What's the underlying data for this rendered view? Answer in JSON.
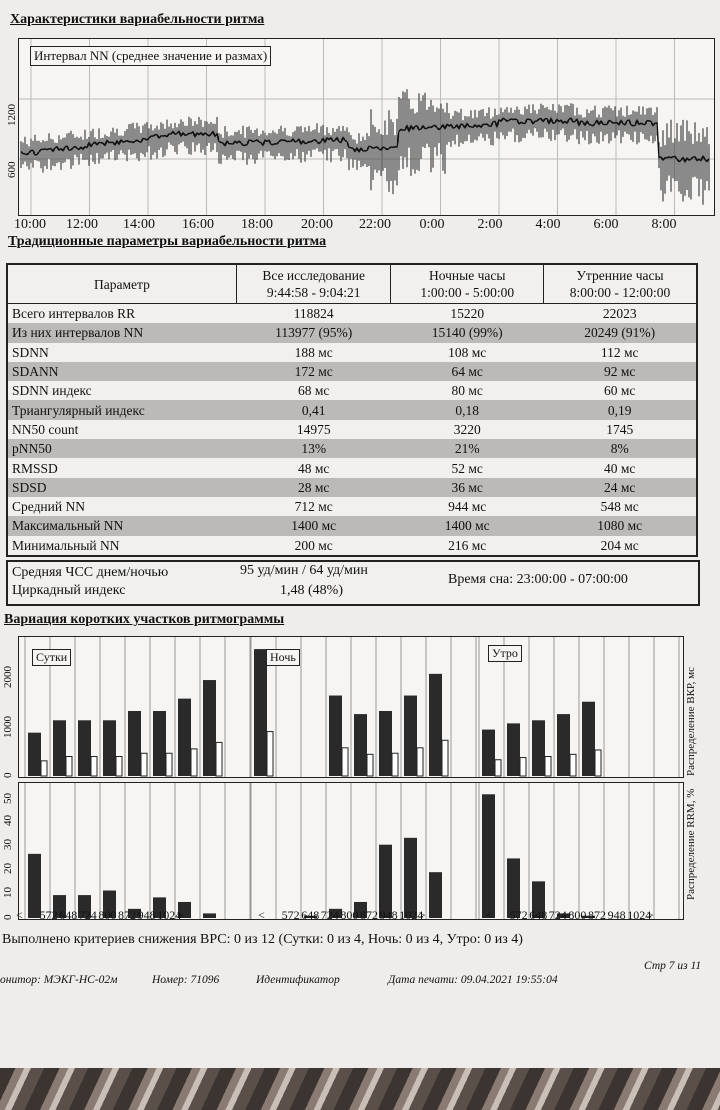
{
  "titles": {
    "variability": "Характеристики вариабельности ритма",
    "traditional": "Традиционные параметры вариабельности ритма",
    "short_segments": "Вариация коротких участков ритмограммы"
  },
  "nn_chart": {
    "legend": "Интервал NN (среднее значение и размах)",
    "y_ticks": [
      "600",
      "1200"
    ],
    "x_labels": [
      "10:00",
      "12:00",
      "14:00",
      "16:00",
      "18:00",
      "20:00",
      "22:00",
      "0:00",
      "2:00",
      "4:00",
      "6:00",
      "8:00"
    ]
  },
  "table": {
    "headers": {
      "param": "Параметр",
      "all_line1": "Все исследование",
      "all_line2": "9:44:58 - 9:04:21",
      "night_line1": "Ночные часы",
      "night_line2": "1:00:00 - 5:00:00",
      "morning_line1": "Утренние часы",
      "morning_line2": "8:00:00 - 12:00:00"
    },
    "rows": [
      {
        "name": "Всего интервалов RR",
        "all": "118824",
        "night": "15220",
        "morning": "22023"
      },
      {
        "name": "Из них интервалов NN",
        "all": "113977 (95%)",
        "night": "15140 (99%)",
        "morning": "20249 (91%)"
      },
      {
        "name": "SDNN",
        "all": "188 мс",
        "night": "108 мс",
        "morning": "112 мс"
      },
      {
        "name": "SDANN",
        "all": "172 мс",
        "night": "64 мс",
        "morning": "92 мс"
      },
      {
        "name": "SDNN индекс",
        "all": "68 мс",
        "night": "80 мс",
        "morning": "60 мс"
      },
      {
        "name": "Триангулярный индекс",
        "all": "0,41",
        "night": "0,18",
        "morning": "0,19"
      },
      {
        "name": "NN50 count",
        "all": "14975",
        "night": "3220",
        "morning": "1745"
      },
      {
        "name": "pNN50",
        "all": "13%",
        "night": "21%",
        "morning": "8%"
      },
      {
        "name": "RMSSD",
        "all": "48 мс",
        "night": "52 мс",
        "morning": "40 мс"
      },
      {
        "name": "SDSD",
        "all": "28 мс",
        "night": "36 мс",
        "morning": "24 мс"
      },
      {
        "name": "Средний NN",
        "all": "712 мс",
        "night": "944 мс",
        "morning": "548 мс"
      },
      {
        "name": "Максимальный NN",
        "all": "1400 мс",
        "night": "1400 мс",
        "morning": "1080 мс"
      },
      {
        "name": "Минимальный NN",
        "all": "200 мс",
        "night": "216 мс",
        "morning": "204 мс"
      }
    ]
  },
  "summary": {
    "hr_label": "Средняя ЧСС днем/ночью",
    "hr_value": "95 уд/мин / 64 уд/мин",
    "circ_label": "Циркадный индекс",
    "circ_value": "1,48 (48%)",
    "sleep": "Время сна: 23:00:00 - 07:00:00"
  },
  "histograms": {
    "group_labels": [
      "Сутки",
      "Ночь",
      "Утро"
    ],
    "top_y_ticks": [
      "0",
      "1000",
      "2000"
    ],
    "bottom_y_ticks": [
      "0",
      "10",
      "20",
      "30",
      "40",
      "50"
    ],
    "top_axis_label": "Распределение ВКР, мс",
    "bottom_axis_label": "Распределение RRM, %",
    "x_ticks": [
      "<",
      "572",
      "648",
      "724",
      "800",
      "872",
      "948",
      "1024",
      ">"
    ]
  },
  "chart_data": [
    {
      "type": "bar",
      "title": "",
      "categories": [
        "<",
        "572",
        "648",
        "724",
        "800",
        "872",
        "948",
        "1024",
        ">"
      ],
      "series": [
        {
          "name": "Сутки",
          "values": [
            700,
            900,
            900,
            900,
            1050,
            1050,
            1250,
            1550,
            null
          ]
        },
        {
          "name": "Ночь",
          "values": [
            2050,
            null,
            null,
            1300,
            1000,
            1050,
            1300,
            1650,
            null
          ]
        },
        {
          "name": "Утро",
          "values": [
            750,
            850,
            900,
            1000,
            1200,
            null,
            null,
            null,
            null
          ]
        }
      ],
      "ylim": [
        0,
        2100
      ]
    },
    {
      "type": "bar",
      "title": "",
      "categories": [
        "<",
        "572",
        "648",
        "724",
        "800",
        "872",
        "948",
        "1024",
        ">"
      ],
      "series": [
        {
          "name": "Сутки",
          "values": [
            28,
            10,
            10,
            12,
            4,
            9,
            7,
            2,
            0
          ]
        },
        {
          "name": "Ночь",
          "values": [
            0,
            0,
            1,
            4,
            7,
            32,
            35,
            20,
            0
          ]
        },
        {
          "name": "Утро",
          "values": [
            54,
            26,
            16,
            2,
            1,
            0,
            0,
            0,
            0
          ]
        }
      ],
      "ylim": [
        0,
        55
      ]
    }
  ],
  "criteria": "Выполнено критериев снижения ВРС: 0 из 12 (Сутки: 0 из 4, Ночь: 0 из 4, Утро: 0 из 4)",
  "footer": {
    "monitor": "онитор: МЭКГ-НС-02м",
    "number": "Номер: 71096",
    "ident": "Идентификатор",
    "print_date": "Дата печати: 09.04.2021 19:55:04",
    "page": "Стр 7 из 11"
  }
}
